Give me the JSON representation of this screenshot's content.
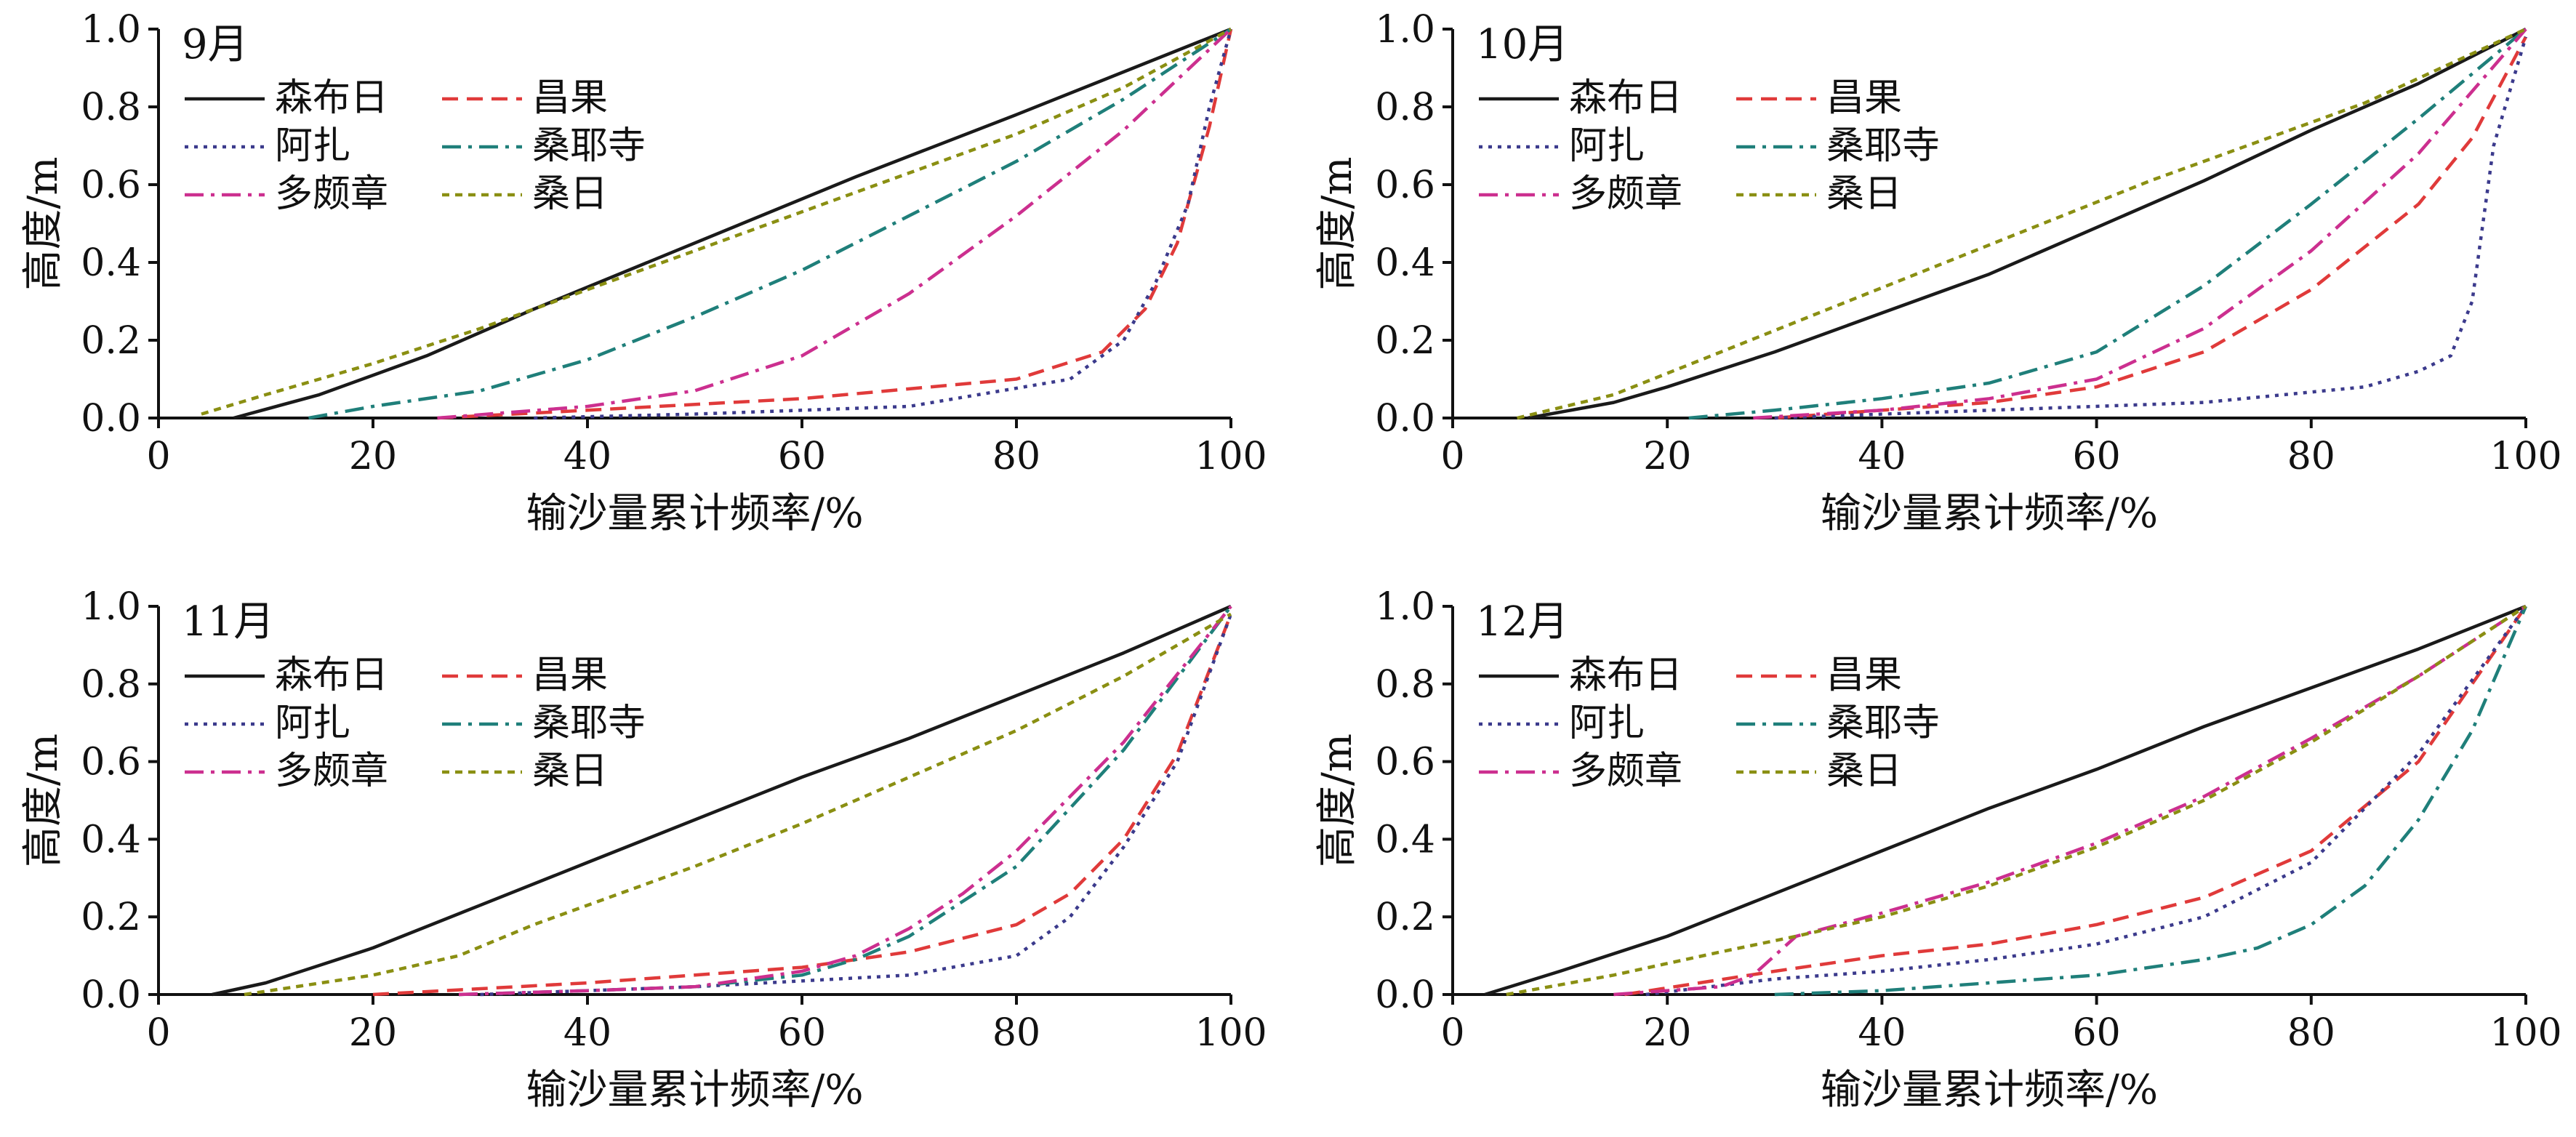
{
  "series_styles": [
    {
      "name": "森布日",
      "color": "#1a1a1a",
      "dash": "solid"
    },
    {
      "name": "昌果",
      "color": "#e03a3a",
      "dash": "dashed"
    },
    {
      "name": "阿扎",
      "color": "#3b3a8c",
      "dash": "dotted"
    },
    {
      "name": "桑耶寺",
      "color": "#1f7f7a",
      "dash": "dashdot"
    },
    {
      "name": "多颇章",
      "color": "#cc2f8f",
      "dash": "dashdot"
    },
    {
      "name": "桑日",
      "color": "#8a8f12",
      "dash": "shortdash"
    }
  ],
  "chart_data": [
    {
      "type": "line",
      "panel_label": "9月",
      "xlabel": "输沙量累计频率/%",
      "ylabel": "高度/m",
      "xlim": [
        0,
        100
      ],
      "ylim": [
        0,
        1.0
      ],
      "xticks": [
        0,
        20,
        40,
        60,
        80,
        100
      ],
      "yticks": [
        0.0,
        0.2,
        0.4,
        0.6,
        0.8,
        1.0
      ],
      "legend": "top-left",
      "series": [
        {
          "name": "森布日",
          "x": [
            7,
            15,
            25,
            35,
            50,
            65,
            80,
            100
          ],
          "y": [
            0.0,
            0.06,
            0.16,
            0.28,
            0.45,
            0.62,
            0.78,
            1.0
          ]
        },
        {
          "name": "昌果",
          "x": [
            26,
            40,
            60,
            80,
            88,
            92,
            95,
            98,
            100
          ],
          "y": [
            0.0,
            0.02,
            0.05,
            0.1,
            0.17,
            0.28,
            0.45,
            0.75,
            1.0
          ]
        },
        {
          "name": "阿扎",
          "x": [
            35,
            50,
            70,
            85,
            90,
            93,
            96,
            98,
            100
          ],
          "y": [
            0.0,
            0.01,
            0.03,
            0.1,
            0.2,
            0.35,
            0.55,
            0.8,
            1.0
          ]
        },
        {
          "name": "桑耶寺",
          "x": [
            14,
            20,
            30,
            40,
            50,
            60,
            70,
            80,
            90,
            100
          ],
          "y": [
            0.0,
            0.03,
            0.07,
            0.15,
            0.26,
            0.38,
            0.52,
            0.66,
            0.82,
            1.0
          ]
        },
        {
          "name": "多颇章",
          "x": [
            26,
            40,
            50,
            60,
            70,
            80,
            90,
            100
          ],
          "y": [
            0.0,
            0.03,
            0.07,
            0.16,
            0.32,
            0.52,
            0.74,
            1.0
          ]
        },
        {
          "name": "桑日",
          "x": [
            4,
            10,
            20,
            30,
            40,
            50,
            60,
            70,
            80,
            90,
            100
          ],
          "y": [
            0.01,
            0.06,
            0.14,
            0.23,
            0.33,
            0.43,
            0.53,
            0.63,
            0.73,
            0.85,
            1.0
          ]
        }
      ]
    },
    {
      "type": "line",
      "panel_label": "10月",
      "xlabel": "输沙量累计频率/%",
      "ylabel": "高度/m",
      "xlim": [
        0,
        100
      ],
      "ylim": [
        0,
        1.0
      ],
      "xticks": [
        0,
        20,
        40,
        60,
        80,
        100
      ],
      "yticks": [
        0.0,
        0.2,
        0.4,
        0.6,
        0.8,
        1.0
      ],
      "legend": "top-left",
      "series": [
        {
          "name": "森布日",
          "x": [
            7,
            15,
            20,
            30,
            40,
            50,
            60,
            70,
            80,
            90,
            100
          ],
          "y": [
            0.0,
            0.04,
            0.08,
            0.17,
            0.27,
            0.37,
            0.49,
            0.61,
            0.74,
            0.86,
            1.0
          ]
        },
        {
          "name": "昌果",
          "x": [
            30,
            40,
            50,
            60,
            70,
            80,
            90,
            95,
            100
          ],
          "y": [
            0.0,
            0.02,
            0.04,
            0.08,
            0.17,
            0.33,
            0.55,
            0.72,
            0.98
          ]
        },
        {
          "name": "阿扎",
          "x": [
            30,
            50,
            70,
            85,
            90,
            93,
            95,
            97,
            100
          ],
          "y": [
            0.0,
            0.02,
            0.04,
            0.08,
            0.12,
            0.16,
            0.3,
            0.7,
            0.98
          ]
        },
        {
          "name": "桑耶寺",
          "x": [
            22,
            30,
            40,
            50,
            60,
            70,
            80,
            90,
            100
          ],
          "y": [
            0.0,
            0.02,
            0.05,
            0.09,
            0.17,
            0.34,
            0.55,
            0.77,
            1.0
          ]
        },
        {
          "name": "多颇章",
          "x": [
            28,
            40,
            50,
            60,
            70,
            80,
            90,
            100
          ],
          "y": [
            0.0,
            0.02,
            0.05,
            0.1,
            0.23,
            0.43,
            0.68,
            1.0
          ]
        },
        {
          "name": "桑日",
          "x": [
            6,
            15,
            25,
            35,
            45,
            55,
            65,
            75,
            85,
            100
          ],
          "y": [
            0.0,
            0.06,
            0.17,
            0.28,
            0.39,
            0.5,
            0.61,
            0.71,
            0.81,
            1.0
          ]
        }
      ]
    },
    {
      "type": "line",
      "panel_label": "11月",
      "xlabel": "输沙量累计频率/%",
      "ylabel": "高度/m",
      "xlim": [
        0,
        100
      ],
      "ylim": [
        0,
        1.0
      ],
      "xticks": [
        0,
        20,
        40,
        60,
        80,
        100
      ],
      "yticks": [
        0.0,
        0.2,
        0.4,
        0.6,
        0.8,
        1.0
      ],
      "legend": "top-left",
      "series": [
        {
          "name": "森布日",
          "x": [
            5,
            10,
            20,
            30,
            40,
            50,
            60,
            70,
            80,
            90,
            100
          ],
          "y": [
            0.0,
            0.03,
            0.12,
            0.23,
            0.34,
            0.45,
            0.56,
            0.66,
            0.77,
            0.88,
            1.0
          ]
        },
        {
          "name": "昌果",
          "x": [
            20,
            40,
            60,
            70,
            80,
            85,
            90,
            95,
            100
          ],
          "y": [
            0.0,
            0.03,
            0.07,
            0.11,
            0.18,
            0.26,
            0.4,
            0.62,
            0.98
          ]
        },
        {
          "name": "阿扎",
          "x": [
            30,
            50,
            70,
            80,
            85,
            90,
            95,
            100
          ],
          "y": [
            0.0,
            0.02,
            0.05,
            0.1,
            0.2,
            0.38,
            0.6,
            0.98
          ]
        },
        {
          "name": "桑耶寺",
          "x": [
            28,
            40,
            50,
            60,
            65,
            70,
            80,
            90,
            100
          ],
          "y": [
            0.0,
            0.01,
            0.02,
            0.05,
            0.09,
            0.15,
            0.33,
            0.63,
            1.0
          ]
        },
        {
          "name": "多颇章",
          "x": [
            28,
            40,
            50,
            60,
            65,
            70,
            75,
            80,
            90,
            100
          ],
          "y": [
            0.0,
            0.01,
            0.02,
            0.06,
            0.1,
            0.17,
            0.26,
            0.37,
            0.65,
            1.0
          ]
        },
        {
          "name": "桑日",
          "x": [
            8,
            20,
            28,
            35,
            40,
            50,
            60,
            70,
            80,
            90,
            100
          ],
          "y": [
            0.0,
            0.05,
            0.1,
            0.18,
            0.23,
            0.33,
            0.44,
            0.56,
            0.68,
            0.82,
            0.98
          ]
        }
      ]
    },
    {
      "type": "line",
      "panel_label": "12月",
      "xlabel": "输沙量累计频率/%",
      "ylabel": "高度/m",
      "xlim": [
        0,
        100
      ],
      "ylim": [
        0,
        1.0
      ],
      "xticks": [
        0,
        20,
        40,
        60,
        80,
        100
      ],
      "yticks": [
        0.0,
        0.2,
        0.4,
        0.6,
        0.8,
        1.0
      ],
      "legend": "top-left",
      "series": [
        {
          "name": "森布日",
          "x": [
            3,
            10,
            20,
            30,
            40,
            50,
            60,
            70,
            80,
            90,
            100
          ],
          "y": [
            0.0,
            0.06,
            0.15,
            0.26,
            0.37,
            0.48,
            0.58,
            0.69,
            0.79,
            0.89,
            1.0
          ]
        },
        {
          "name": "昌果",
          "x": [
            16,
            30,
            40,
            50,
            60,
            70,
            80,
            90,
            100
          ],
          "y": [
            0.0,
            0.06,
            0.1,
            0.13,
            0.18,
            0.25,
            0.37,
            0.6,
            1.0
          ]
        },
        {
          "name": "阿扎",
          "x": [
            18,
            30,
            40,
            50,
            60,
            70,
            80,
            90,
            100
          ],
          "y": [
            0.0,
            0.04,
            0.06,
            0.09,
            0.13,
            0.2,
            0.34,
            0.62,
            1.0
          ]
        },
        {
          "name": "桑耶寺",
          "x": [
            30,
            40,
            50,
            60,
            70,
            75,
            80,
            85,
            90,
            95,
            100
          ],
          "y": [
            0.0,
            0.01,
            0.03,
            0.05,
            0.09,
            0.12,
            0.18,
            0.28,
            0.45,
            0.68,
            1.0
          ]
        },
        {
          "name": "多颇章",
          "x": [
            15,
            25,
            28,
            32,
            40,
            50,
            60,
            70,
            80,
            90,
            100
          ],
          "y": [
            0.0,
            0.02,
            0.05,
            0.15,
            0.21,
            0.29,
            0.39,
            0.51,
            0.66,
            0.82,
            1.0
          ]
        },
        {
          "name": "桑日",
          "x": [
            5,
            15,
            25,
            32,
            40,
            50,
            60,
            70,
            80,
            90,
            100
          ],
          "y": [
            0.0,
            0.05,
            0.11,
            0.15,
            0.2,
            0.28,
            0.38,
            0.5,
            0.65,
            0.82,
            1.0
          ]
        }
      ]
    }
  ]
}
